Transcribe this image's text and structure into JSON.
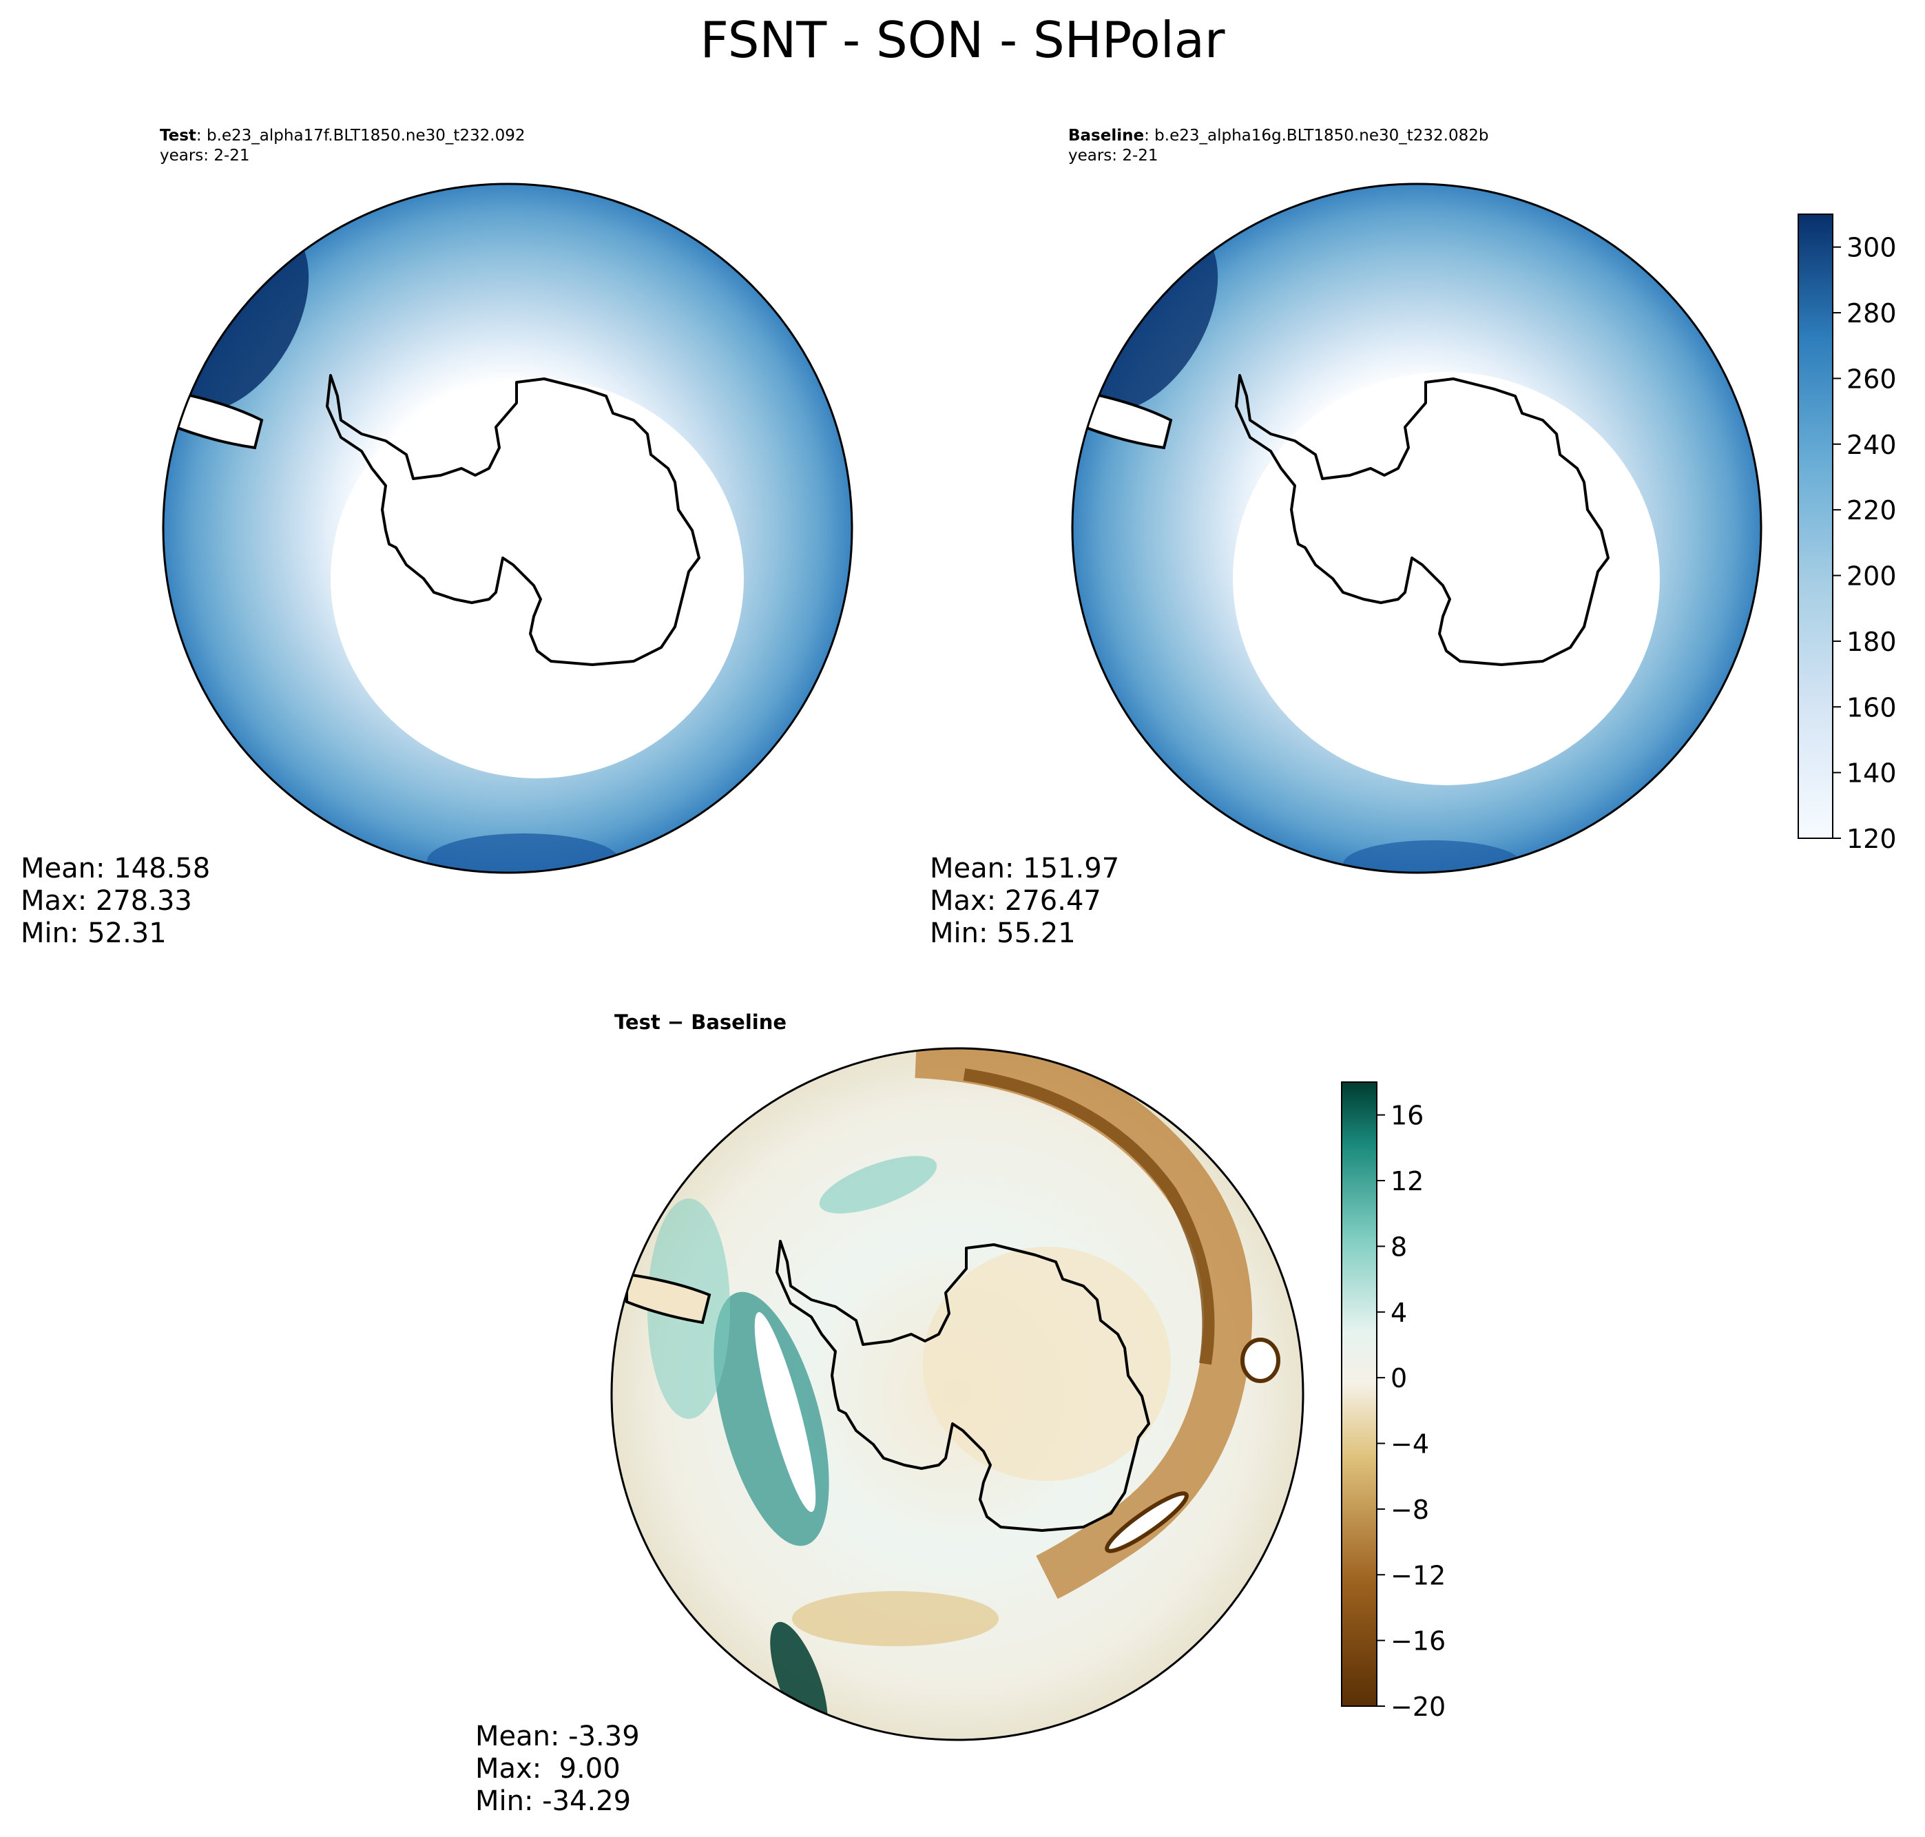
{
  "suptitle": "FSNT - SON - SHPolar",
  "panels": {
    "test": {
      "title_bold": "Test",
      "title_sep": ": ",
      "title_case": "b.e23_alpha17f.BLT1850.ne30_t232.092",
      "years": "years: 2-21",
      "stats": {
        "mean": "Mean: 148.58",
        "max": "Max: 278.33",
        "min": "Min: 52.31"
      }
    },
    "baseline": {
      "title_bold": "Baseline",
      "title_sep": ": ",
      "title_case": "b.e23_alpha16g.BLT1850.ne30_t232.082b",
      "years": "years: 2-21",
      "stats": {
        "mean": "Mean: 151.97",
        "max": "Max: 276.47",
        "min": "Min: 55.21"
      }
    },
    "diff": {
      "title": "Test − Baseline",
      "stats": {
        "mean": "Mean: -3.39",
        "max": "Max:  9.00",
        "min": "Min: -34.29"
      }
    }
  },
  "chart_data": [
    {
      "type": "heatmap",
      "name": "Test",
      "projection": "south-polar-stereographic",
      "variable": "FSNT",
      "season": "SON",
      "region": "SHPolar",
      "colormap": "Blues",
      "colorbar": {
        "ticks": [
          120,
          140,
          160,
          180,
          200,
          220,
          240,
          260,
          280,
          300
        ],
        "range": [
          120,
          310
        ]
      },
      "stats": {
        "mean": 148.58,
        "max": 278.33,
        "min": 52.31
      }
    },
    {
      "type": "heatmap",
      "name": "Baseline",
      "projection": "south-polar-stereographic",
      "variable": "FSNT",
      "season": "SON",
      "region": "SHPolar",
      "colormap": "Blues",
      "colorbar": {
        "ticks": [
          120,
          140,
          160,
          180,
          200,
          220,
          240,
          260,
          280,
          300
        ],
        "range": [
          120,
          310
        ]
      },
      "stats": {
        "mean": 151.97,
        "max": 276.47,
        "min": 55.21
      }
    },
    {
      "type": "heatmap",
      "name": "Test − Baseline",
      "projection": "south-polar-stereographic",
      "colormap": "BrBG",
      "colorbar": {
        "ticks": [
          16,
          12,
          8,
          4,
          0,
          -4,
          -8,
          -12,
          -16,
          -20
        ],
        "tick_labels": [
          "16",
          "12",
          "8",
          "4",
          "0",
          "−4",
          "−8",
          "−12",
          "−16",
          "−20"
        ],
        "range": [
          -20,
          18
        ]
      },
      "stats": {
        "mean": -3.39,
        "max": 9.0,
        "min": -34.29
      }
    }
  ]
}
